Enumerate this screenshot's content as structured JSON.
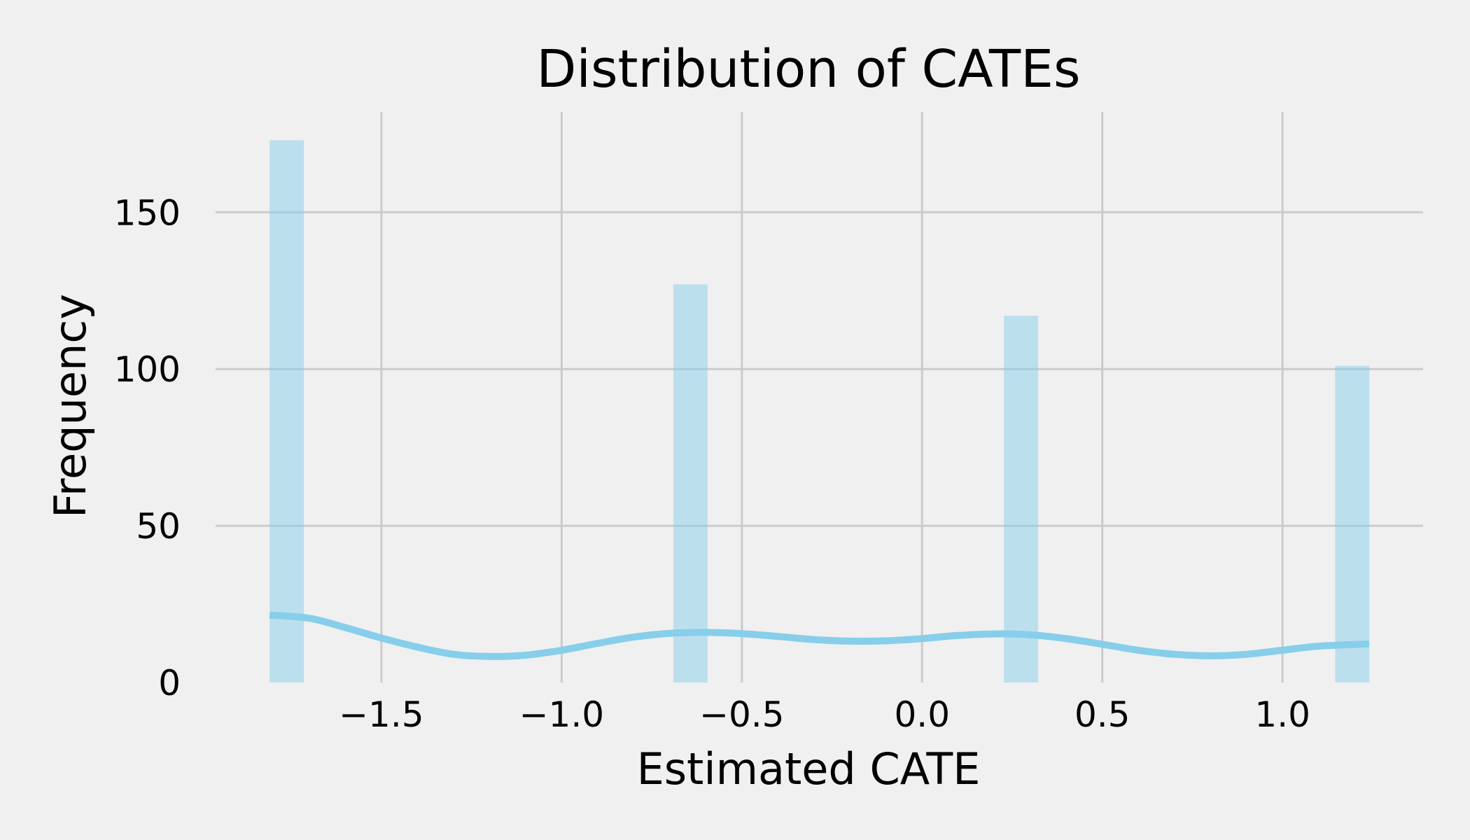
{
  "chart_data": {
    "type": "bar",
    "subtype": "histogram",
    "title": "Distribution of CATEs",
    "xlabel": "Estimated CATE",
    "ylabel": "Frequency",
    "xlim": [
      -1.96,
      1.39
    ],
    "ylim": [
      0,
      182
    ],
    "xticks": [
      -1.5,
      -1.0,
      -0.5,
      0.0,
      0.5,
      1.0
    ],
    "xtick_labels": [
      "−1.5",
      "−1.0",
      "−0.5",
      "0.0",
      "0.5",
      "1.0"
    ],
    "yticks": [
      0,
      50,
      100,
      150
    ],
    "ytick_labels": [
      "0",
      "50",
      "100",
      "150"
    ],
    "grid": true,
    "color": "#87ceeb",
    "bins": [
      {
        "x0": -1.81,
        "x1": -1.715,
        "count": 173
      },
      {
        "x0": -0.69,
        "x1": -0.595,
        "count": 127
      },
      {
        "x0": 0.227,
        "x1": 0.322,
        "count": 117
      },
      {
        "x0": 1.146,
        "x1": 1.241,
        "count": 101
      }
    ],
    "kde": {
      "x": [
        -1.81,
        -1.7,
        -1.6,
        -1.5,
        -1.4,
        -1.3,
        -1.2,
        -1.1,
        -1.0,
        -0.9,
        -0.8,
        -0.7,
        -0.6,
        -0.5,
        -0.4,
        -0.3,
        -0.2,
        -0.1,
        0.0,
        0.1,
        0.2,
        0.3,
        0.4,
        0.5,
        0.6,
        0.7,
        0.8,
        0.9,
        1.0,
        1.1,
        1.24
      ],
      "y": [
        21.5,
        20.5,
        17.5,
        14.2,
        11.3,
        9.0,
        8.3,
        8.7,
        10.3,
        12.5,
        14.5,
        15.7,
        16.0,
        15.6,
        14.7,
        13.7,
        13.2,
        13.3,
        14.0,
        15.0,
        15.5,
        15.2,
        14.0,
        12.2,
        10.3,
        9.0,
        8.5,
        9.0,
        10.3,
        11.6,
        12.3
      ]
    }
  }
}
